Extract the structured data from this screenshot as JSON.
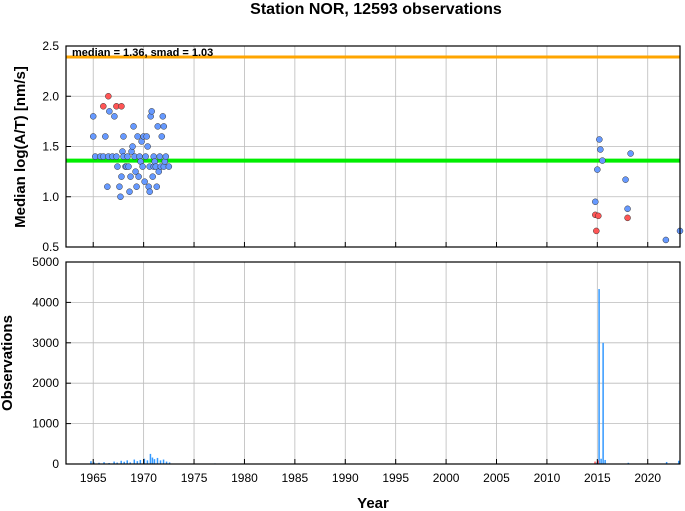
{
  "chart_data": [
    {
      "type": "scatter",
      "title": "Station NOR, 12593 observations",
      "ylabel": "Median log(A/T) [nm/s]",
      "xlabel": "",
      "xlim": [
        1962.3,
        2023.2
      ],
      "ylim": [
        0.5,
        2.5
      ],
      "x_ticks": [
        1965,
        1970,
        1975,
        1980,
        1985,
        1990,
        1995,
        2000,
        2005,
        2010,
        2015,
        2020
      ],
      "y_ticks": [
        0.5,
        1.0,
        1.5,
        2.0,
        2.5
      ],
      "y_tick_labels": [
        "0.5",
        "1.0",
        "1.5",
        "2.0",
        "2.5"
      ],
      "grid": true,
      "annotation": "median = 1.36, smad = 1.03",
      "reference_lines": [
        {
          "y": 2.39,
          "color": "#ffa500"
        },
        {
          "y": 1.36,
          "color": "#00ee00"
        }
      ],
      "series": [
        {
          "color": "#6699ff",
          "points": [
            [
              1965.0,
              1.8
            ],
            [
              1965.0,
              1.6
            ],
            [
              1965.2,
              1.4
            ],
            [
              1965.7,
              1.4
            ],
            [
              1966.0,
              1.4
            ],
            [
              1966.2,
              1.6
            ],
            [
              1966.4,
              1.1
            ],
            [
              1966.5,
              1.4
            ],
            [
              1966.6,
              1.85
            ],
            [
              1966.9,
              1.4
            ],
            [
              1967.1,
              1.8
            ],
            [
              1967.3,
              1.4
            ],
            [
              1967.4,
              1.3
            ],
            [
              1967.6,
              1.1
            ],
            [
              1967.7,
              1.0
            ],
            [
              1967.8,
              1.2
            ],
            [
              1967.9,
              1.45
            ],
            [
              1968.0,
              1.4
            ],
            [
              1968.0,
              1.6
            ],
            [
              1968.2,
              1.3
            ],
            [
              1968.3,
              1.3
            ],
            [
              1968.4,
              1.4
            ],
            [
              1968.5,
              1.3
            ],
            [
              1968.6,
              1.05
            ],
            [
              1968.7,
              1.2
            ],
            [
              1968.8,
              1.45
            ],
            [
              1968.9,
              1.5
            ],
            [
              1969.0,
              1.7
            ],
            [
              1969.1,
              1.4
            ],
            [
              1969.2,
              1.25
            ],
            [
              1969.3,
              1.1
            ],
            [
              1969.4,
              1.6
            ],
            [
              1969.5,
              1.2
            ],
            [
              1969.6,
              1.4
            ],
            [
              1969.7,
              1.35
            ],
            [
              1969.8,
              1.55
            ],
            [
              1969.9,
              1.3
            ],
            [
              1970.0,
              1.6
            ],
            [
              1970.1,
              1.15
            ],
            [
              1970.2,
              1.4
            ],
            [
              1970.3,
              1.6
            ],
            [
              1970.4,
              1.5
            ],
            [
              1970.5,
              1.1
            ],
            [
              1970.6,
              1.05
            ],
            [
              1970.6,
              1.3
            ],
            [
              1970.7,
              1.8
            ],
            [
              1970.8,
              1.85
            ],
            [
              1970.9,
              1.2
            ],
            [
              1971.0,
              1.4
            ],
            [
              1971.0,
              1.3
            ],
            [
              1971.1,
              1.35
            ],
            [
              1971.2,
              1.3
            ],
            [
              1971.3,
              1.1
            ],
            [
              1971.4,
              1.7
            ],
            [
              1971.5,
              1.25
            ],
            [
              1971.6,
              1.4
            ],
            [
              1971.7,
              1.3
            ],
            [
              1971.8,
              1.6
            ],
            [
              1971.9,
              1.8
            ],
            [
              1972.0,
              1.7
            ],
            [
              1972.0,
              1.3
            ],
            [
              1972.1,
              1.35
            ],
            [
              1972.2,
              1.4
            ],
            [
              1972.5,
              1.3
            ],
            [
              2014.8,
              0.95
            ],
            [
              2015.0,
              1.27
            ],
            [
              2015.2,
              1.57
            ],
            [
              2015.3,
              1.47
            ],
            [
              2015.5,
              1.36
            ],
            [
              2017.8,
              1.17
            ],
            [
              2018.0,
              0.88
            ],
            [
              2018.3,
              1.43
            ],
            [
              2021.8,
              0.57
            ],
            [
              2023.2,
              0.66
            ]
          ]
        },
        {
          "color": "#ff5555",
          "points": [
            [
              1966.0,
              1.9
            ],
            [
              1966.5,
              2.0
            ],
            [
              1967.3,
              1.9
            ],
            [
              1967.8,
              1.9
            ],
            [
              2014.8,
              0.82
            ],
            [
              2015.1,
              0.81
            ],
            [
              2014.9,
              0.66
            ],
            [
              2018.0,
              0.79
            ]
          ]
        }
      ]
    },
    {
      "type": "bar",
      "xlabel": "Year",
      "ylabel": "Observations",
      "xlim": [
        1962.3,
        2023.2
      ],
      "ylim": [
        0,
        5000
      ],
      "x_ticks": [
        1965,
        1970,
        1975,
        1980,
        1985,
        1990,
        1995,
        2000,
        2005,
        2010,
        2015,
        2020
      ],
      "y_ticks": [
        0,
        1000,
        2000,
        3000,
        4000,
        5000
      ],
      "grid": true,
      "series": [
        {
          "color": "#3399ff",
          "points": [
            [
              1964.7,
              70
            ],
            [
              1965.0,
              40
            ],
            [
              1965.5,
              30
            ],
            [
              1966.0,
              45
            ],
            [
              1966.5,
              25
            ],
            [
              1967.0,
              60
            ],
            [
              1967.3,
              35
            ],
            [
              1967.7,
              80
            ],
            [
              1968.0,
              55
            ],
            [
              1968.3,
              90
            ],
            [
              1968.6,
              40
            ],
            [
              1969.0,
              110
            ],
            [
              1969.3,
              70
            ],
            [
              1969.6,
              100
            ],
            [
              1970.0,
              130
            ],
            [
              1970.3,
              90
            ],
            [
              1970.6,
              250
            ],
            [
              1970.8,
              160
            ],
            [
              1971.0,
              120
            ],
            [
              1971.3,
              150
            ],
            [
              1971.6,
              90
            ],
            [
              1971.9,
              110
            ],
            [
              1972.2,
              60
            ],
            [
              1972.5,
              40
            ],
            [
              1977.0,
              15
            ],
            [
              1984.0,
              10
            ],
            [
              1990.0,
              8
            ],
            [
              1998.0,
              10
            ],
            [
              2003.0,
              8
            ],
            [
              2014.9,
              40
            ],
            [
              2015.1,
              4330
            ],
            [
              2015.3,
              130
            ],
            [
              2015.5,
              3000
            ],
            [
              2015.7,
              100
            ],
            [
              2018.0,
              30
            ],
            [
              2021.8,
              50
            ],
            [
              2023.0,
              80
            ]
          ]
        },
        {
          "color": "#ff5555",
          "points": [
            [
              2014.7,
              60
            ],
            [
              2015.0,
              90
            ]
          ]
        }
      ]
    }
  ]
}
